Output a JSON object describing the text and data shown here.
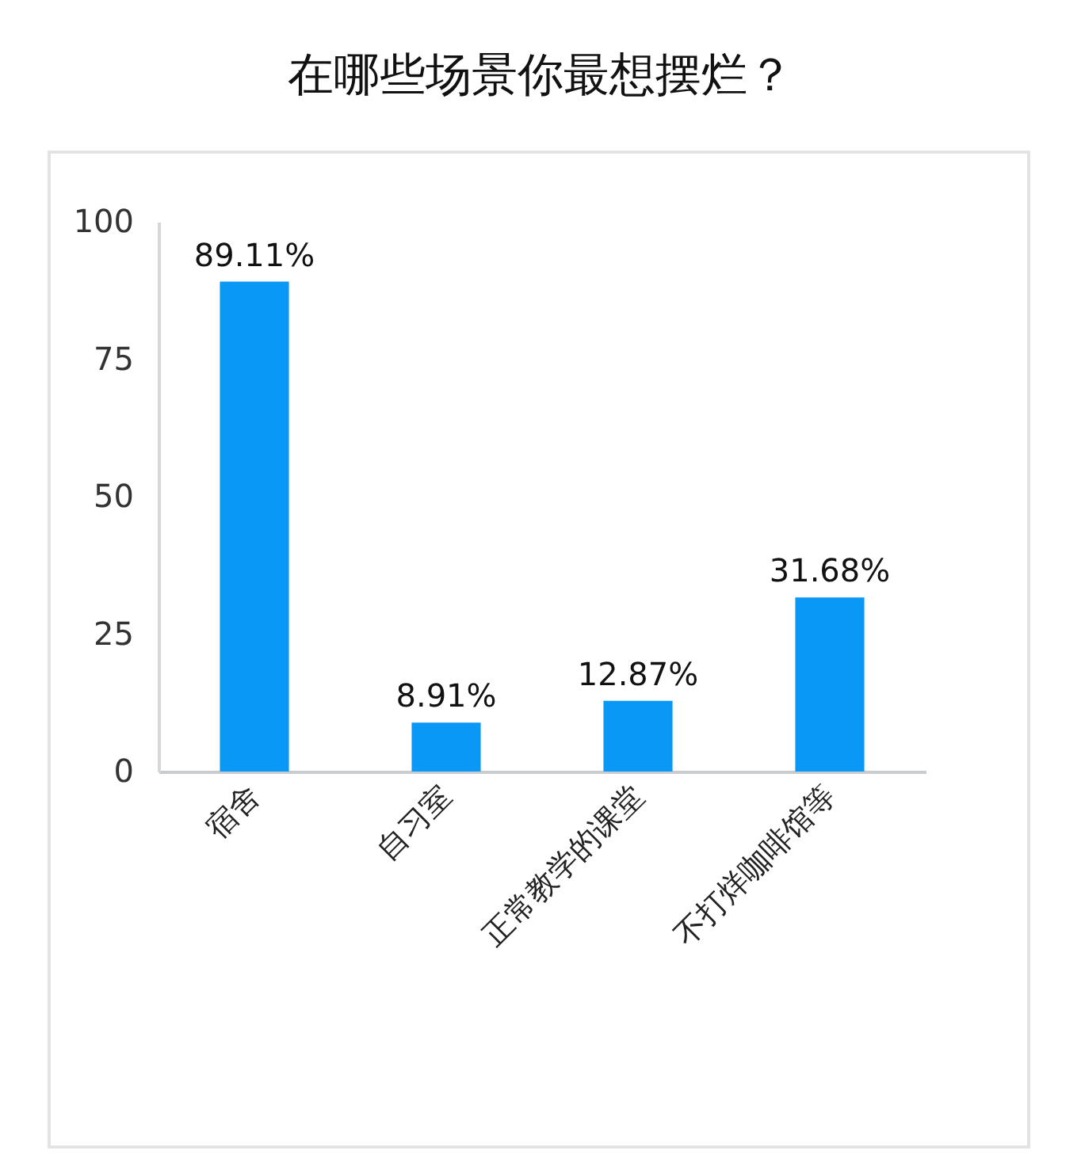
{
  "chart_data": {
    "type": "bar",
    "title": "在哪些场景你最想摆烂？",
    "categories": [
      "宿舍",
      "自习室",
      "正常教学的课堂",
      "不打烊咖啡馆等"
    ],
    "values": [
      89.11,
      8.91,
      12.87,
      31.68
    ],
    "value_labels": [
      "89.11%",
      "8.91%",
      "12.87%",
      "31.68%"
    ],
    "color": "#0a98f7",
    "ylim": [
      0,
      100
    ],
    "yticks": [
      0,
      25,
      50,
      75,
      100
    ],
    "grid": false
  }
}
